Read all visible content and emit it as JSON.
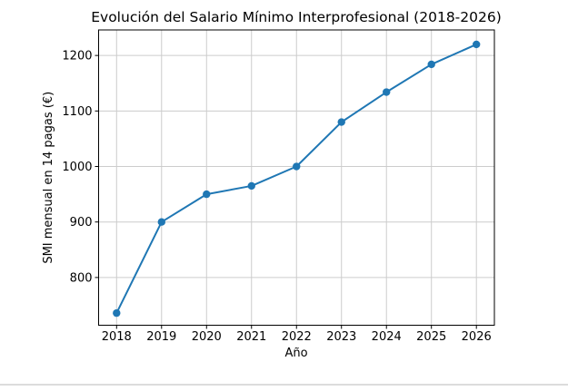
{
  "chart_data": {
    "type": "line",
    "title": "Evolución del Salario Mínimo Interprofesional (2018-2026)",
    "xlabel": "Año",
    "ylabel": "SMI mensual en 14 pagas (€)",
    "x": [
      2018,
      2019,
      2020,
      2021,
      2022,
      2023,
      2024,
      2025,
      2026
    ],
    "series": [
      {
        "name": "SMI mensual en 14 pagas",
        "values": [
          735.9,
          900,
          950,
          965,
          1000,
          1080,
          1134,
          1184,
          1220
        ]
      }
    ],
    "xticks": [
      2018,
      2019,
      2020,
      2021,
      2022,
      2023,
      2024,
      2025,
      2026
    ],
    "yticks": [
      800,
      900,
      1000,
      1100,
      1200
    ],
    "xlim": [
      2017.6,
      2026.4
    ],
    "ylim": [
      714,
      1246
    ],
    "grid": true,
    "legend": null,
    "line_color": "#1f77b4",
    "marker": "circle",
    "marker_color": "#1f77b4",
    "grid_color": "#cccccc",
    "axis_color": "#000000",
    "background_color": "#ffffff"
  },
  "page": {
    "divider_color": "#dcdcdc"
  }
}
